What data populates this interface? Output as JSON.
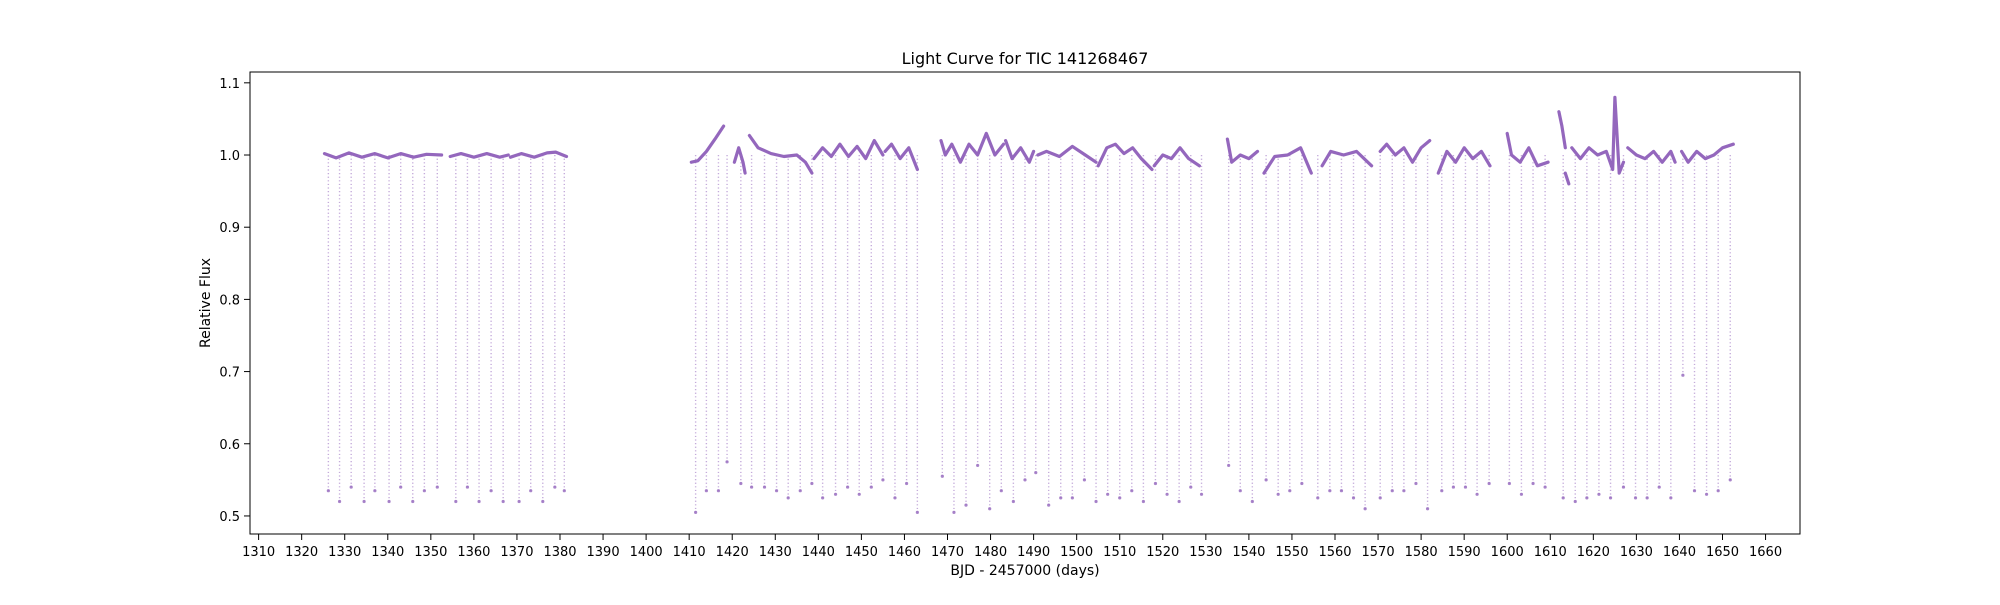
{
  "chart_data": {
    "type": "scatter",
    "title": "Light Curve for TIC 141268467",
    "xlabel": "BJD - 2457000 (days)",
    "ylabel": "Relative Flux",
    "xlim": [
      1308,
      1668
    ],
    "ylim": [
      0.475,
      1.115
    ],
    "xticks": [
      1310,
      1320,
      1330,
      1340,
      1350,
      1360,
      1370,
      1380,
      1390,
      1400,
      1410,
      1420,
      1430,
      1440,
      1450,
      1460,
      1470,
      1480,
      1490,
      1500,
      1510,
      1520,
      1530,
      1540,
      1550,
      1560,
      1570,
      1580,
      1590,
      1600,
      1610,
      1620,
      1630,
      1640,
      1650,
      1660
    ],
    "yticks": [
      0.5,
      0.6,
      0.7,
      0.8,
      0.9,
      1.0,
      1.1
    ],
    "ytick_labels": [
      "0.5",
      "0.6",
      "0.7",
      "0.8",
      "0.9",
      "1.0",
      "1.1"
    ],
    "grid": false,
    "legend": "none",
    "point_color": "#9467bd",
    "series": [
      {
        "segments": [
          {
            "x": [
              1325.3,
              1328,
              1331,
              1334,
              1337,
              1340,
              1343,
              1346,
              1349,
              1352.5
            ],
            "y": [
              1.002,
              0.996,
              1.003,
              0.997,
              1.002,
              0.996,
              1.002,
              0.997,
              1.001,
              1.0
            ]
          },
          {
            "x": [
              1354.5,
              1357,
              1360,
              1363,
              1366,
              1368
            ],
            "y": [
              0.998,
              1.002,
              0.997,
              1.002,
              0.997,
              1.0
            ]
          },
          {
            "x": [
              1368.5,
              1371,
              1374,
              1377,
              1379,
              1381.5
            ],
            "y": [
              0.997,
              1.002,
              0.997,
              1.003,
              1.004,
              0.998
            ]
          },
          {
            "x": [
              1410.5,
              1412,
              1414,
              1416,
              1418
            ],
            "y": [
              0.99,
              0.992,
              1.005,
              1.022,
              1.04
            ]
          },
          {
            "x": [
              1420.5,
              1421.5,
              1422.5,
              1423
            ],
            "y": [
              0.99,
              1.01,
              0.99,
              0.975
            ]
          },
          {
            "x": [
              1424,
              1426,
              1429,
              1432,
              1435,
              1437,
              1438.5
            ],
            "y": [
              1.027,
              1.01,
              1.002,
              0.998,
              1.0,
              0.99,
              0.975
            ]
          },
          {
            "x": [
              1439,
              1441,
              1443,
              1445,
              1447,
              1449,
              1451,
              1453,
              1455
            ],
            "y": [
              0.995,
              1.01,
              0.998,
              1.015,
              0.998,
              1.012,
              0.995,
              1.02,
              1.0
            ]
          },
          {
            "x": [
              1455.5,
              1457,
              1459,
              1461,
              1463
            ],
            "y": [
              1.005,
              1.015,
              0.995,
              1.01,
              0.98
            ]
          },
          {
            "x": [
              1468.5,
              1469.5,
              1471,
              1473,
              1475,
              1477,
              1479,
              1481,
              1483
            ],
            "y": [
              1.02,
              1.0,
              1.015,
              0.99,
              1.015,
              1.0,
              1.03,
              1.0,
              1.015
            ]
          },
          {
            "x": [
              1483.5,
              1485,
              1487,
              1489,
              1490
            ],
            "y": [
              1.02,
              0.995,
              1.01,
              0.99,
              1.005
            ]
          },
          {
            "x": [
              1491,
              1493,
              1496,
              1499,
              1502,
              1504.5
            ],
            "y": [
              1.0,
              1.005,
              0.998,
              1.012,
              1.0,
              0.99
            ]
          },
          {
            "x": [
              1505,
              1507,
              1509,
              1511,
              1513,
              1515,
              1517.5
            ],
            "y": [
              0.985,
              1.01,
              1.015,
              1.002,
              1.01,
              0.995,
              0.98
            ]
          },
          {
            "x": [
              1518,
              1520,
              1522,
              1524,
              1526,
              1528.5
            ],
            "y": [
              0.985,
              1.0,
              0.995,
              1.01,
              0.995,
              0.985
            ]
          },
          {
            "x": [
              1535,
              1536,
              1538,
              1540,
              1542
            ],
            "y": [
              1.022,
              0.99,
              1.0,
              0.995,
              1.005
            ]
          },
          {
            "x": [
              1543.5,
              1546,
              1549,
              1552,
              1554.5
            ],
            "y": [
              0.975,
              0.998,
              1.0,
              1.01,
              0.975
            ]
          },
          {
            "x": [
              1557,
              1559,
              1562,
              1565,
              1568.5
            ],
            "y": [
              0.985,
              1.005,
              1.0,
              1.005,
              0.985
            ]
          },
          {
            "x": [
              1570.5,
              1572,
              1574,
              1576,
              1578,
              1580,
              1582
            ],
            "y": [
              1.005,
              1.015,
              1.0,
              1.01,
              0.99,
              1.01,
              1.02
            ]
          },
          {
            "x": [
              1584,
              1586,
              1588,
              1590,
              1592,
              1594,
              1596
            ],
            "y": [
              0.975,
              1.005,
              0.99,
              1.01,
              0.995,
              1.005,
              0.985
            ]
          },
          {
            "x": [
              1600,
              1601,
              1603,
              1605,
              1607,
              1609.5
            ],
            "y": [
              1.03,
              1.0,
              0.99,
              1.01,
              0.985,
              0.99
            ]
          },
          {
            "x": [
              1612,
              1612.7,
              1613.5
            ],
            "y": [
              1.06,
              1.04,
              1.01
            ]
          },
          {
            "x": [
              1613.5,
              1614.3
            ],
            "y": [
              0.975,
              0.96
            ]
          },
          {
            "x": [
              1615,
              1617,
              1619,
              1621,
              1623,
              1624.5,
              1625,
              1626,
              1627
            ],
            "y": [
              1.01,
              0.995,
              1.01,
              1.0,
              1.005,
              0.98,
              1.08,
              0.975,
              0.99
            ]
          },
          {
            "x": [
              1628,
              1630,
              1632,
              1634,
              1636,
              1638,
              1639
            ],
            "y": [
              1.01,
              1.0,
              0.995,
              1.005,
              0.99,
              1.005,
              0.99
            ]
          },
          {
            "x": [
              1640.5,
              1642,
              1644,
              1646,
              1648,
              1650,
              1652.5
            ],
            "y": [
              1.005,
              0.99,
              1.005,
              0.995,
              1.0,
              1.01,
              1.015
            ]
          }
        ],
        "dips": [
          {
            "x": 1326.2,
            "y": 0.535
          },
          {
            "x": 1328.8,
            "y": 0.52
          },
          {
            "x": 1331.5,
            "y": 0.54
          },
          {
            "x": 1334.5,
            "y": 0.52
          },
          {
            "x": 1337.0,
            "y": 0.535
          },
          {
            "x": 1340.3,
            "y": 0.52
          },
          {
            "x": 1343.0,
            "y": 0.54
          },
          {
            "x": 1345.8,
            "y": 0.52
          },
          {
            "x": 1348.5,
            "y": 0.535
          },
          {
            "x": 1351.5,
            "y": 0.54
          },
          {
            "x": 1355.8,
            "y": 0.52
          },
          {
            "x": 1358.5,
            "y": 0.54
          },
          {
            "x": 1361.2,
            "y": 0.52
          },
          {
            "x": 1364.0,
            "y": 0.535
          },
          {
            "x": 1366.8,
            "y": 0.52
          },
          {
            "x": 1370.5,
            "y": 0.52
          },
          {
            "x": 1373.2,
            "y": 0.535
          },
          {
            "x": 1376.0,
            "y": 0.52
          },
          {
            "x": 1378.8,
            "y": 0.54
          },
          {
            "x": 1381.0,
            "y": 0.535
          },
          {
            "x": 1411.5,
            "y": 0.505
          },
          {
            "x": 1414.0,
            "y": 0.535
          },
          {
            "x": 1416.8,
            "y": 0.535
          },
          {
            "x": 1418.8,
            "y": 0.575
          },
          {
            "x": 1422.0,
            "y": 0.545
          },
          {
            "x": 1424.5,
            "y": 0.54
          },
          {
            "x": 1427.5,
            "y": 0.54
          },
          {
            "x": 1430.3,
            "y": 0.535
          },
          {
            "x": 1433.0,
            "y": 0.525
          },
          {
            "x": 1435.8,
            "y": 0.535
          },
          {
            "x": 1438.5,
            "y": 0.545
          },
          {
            "x": 1441.0,
            "y": 0.525
          },
          {
            "x": 1444.0,
            "y": 0.53
          },
          {
            "x": 1446.8,
            "y": 0.54
          },
          {
            "x": 1449.5,
            "y": 0.53
          },
          {
            "x": 1452.3,
            "y": 0.54
          },
          {
            "x": 1455.0,
            "y": 0.55
          },
          {
            "x": 1457.8,
            "y": 0.525
          },
          {
            "x": 1460.5,
            "y": 0.545
          },
          {
            "x": 1463.0,
            "y": 0.505
          },
          {
            "x": 1468.8,
            "y": 0.555
          },
          {
            "x": 1471.5,
            "y": 0.505
          },
          {
            "x": 1474.3,
            "y": 0.515
          },
          {
            "x": 1477.0,
            "y": 0.57
          },
          {
            "x": 1479.8,
            "y": 0.51
          },
          {
            "x": 1482.5,
            "y": 0.535
          },
          {
            "x": 1485.3,
            "y": 0.52
          },
          {
            "x": 1488.0,
            "y": 0.55
          },
          {
            "x": 1490.5,
            "y": 0.56
          },
          {
            "x": 1493.5,
            "y": 0.515
          },
          {
            "x": 1496.3,
            "y": 0.525
          },
          {
            "x": 1499.0,
            "y": 0.525
          },
          {
            "x": 1501.8,
            "y": 0.55
          },
          {
            "x": 1504.5,
            "y": 0.52
          },
          {
            "x": 1507.2,
            "y": 0.53
          },
          {
            "x": 1510.0,
            "y": 0.525
          },
          {
            "x": 1512.8,
            "y": 0.535
          },
          {
            "x": 1515.5,
            "y": 0.52
          },
          {
            "x": 1518.3,
            "y": 0.545
          },
          {
            "x": 1521.0,
            "y": 0.53
          },
          {
            "x": 1523.8,
            "y": 0.52
          },
          {
            "x": 1526.5,
            "y": 0.54
          },
          {
            "x": 1529.0,
            "y": 0.53
          },
          {
            "x": 1535.3,
            "y": 0.57
          },
          {
            "x": 1538.0,
            "y": 0.535
          },
          {
            "x": 1540.8,
            "y": 0.52
          },
          {
            "x": 1544.0,
            "y": 0.55
          },
          {
            "x": 1546.8,
            "y": 0.53
          },
          {
            "x": 1549.5,
            "y": 0.535
          },
          {
            "x": 1552.3,
            "y": 0.545
          },
          {
            "x": 1556.0,
            "y": 0.525
          },
          {
            "x": 1558.8,
            "y": 0.535
          },
          {
            "x": 1561.5,
            "y": 0.535
          },
          {
            "x": 1564.3,
            "y": 0.525
          },
          {
            "x": 1567.0,
            "y": 0.51
          },
          {
            "x": 1570.5,
            "y": 0.525
          },
          {
            "x": 1573.3,
            "y": 0.535
          },
          {
            "x": 1576.0,
            "y": 0.535
          },
          {
            "x": 1578.8,
            "y": 0.545
          },
          {
            "x": 1581.5,
            "y": 0.51
          },
          {
            "x": 1584.8,
            "y": 0.535
          },
          {
            "x": 1587.5,
            "y": 0.54
          },
          {
            "x": 1590.3,
            "y": 0.54
          },
          {
            "x": 1593.0,
            "y": 0.53
          },
          {
            "x": 1595.8,
            "y": 0.545
          },
          {
            "x": 1600.5,
            "y": 0.545
          },
          {
            "x": 1603.3,
            "y": 0.53
          },
          {
            "x": 1606.0,
            "y": 0.545
          },
          {
            "x": 1608.8,
            "y": 0.54
          },
          {
            "x": 1613.0,
            "y": 0.525
          },
          {
            "x": 1615.8,
            "y": 0.52
          },
          {
            "x": 1618.5,
            "y": 0.525
          },
          {
            "x": 1621.3,
            "y": 0.53
          },
          {
            "x": 1624.0,
            "y": 0.525
          },
          {
            "x": 1627.0,
            "y": 0.54
          },
          {
            "x": 1629.8,
            "y": 0.525
          },
          {
            "x": 1632.5,
            "y": 0.525
          },
          {
            "x": 1635.3,
            "y": 0.54
          },
          {
            "x": 1638.0,
            "y": 0.525
          },
          {
            "x": 1640.8,
            "y": 0.695
          },
          {
            "x": 1643.5,
            "y": 0.535
          },
          {
            "x": 1646.3,
            "y": 0.53
          },
          {
            "x": 1649.0,
            "y": 0.535
          },
          {
            "x": 1651.8,
            "y": 0.55
          }
        ]
      }
    ]
  }
}
